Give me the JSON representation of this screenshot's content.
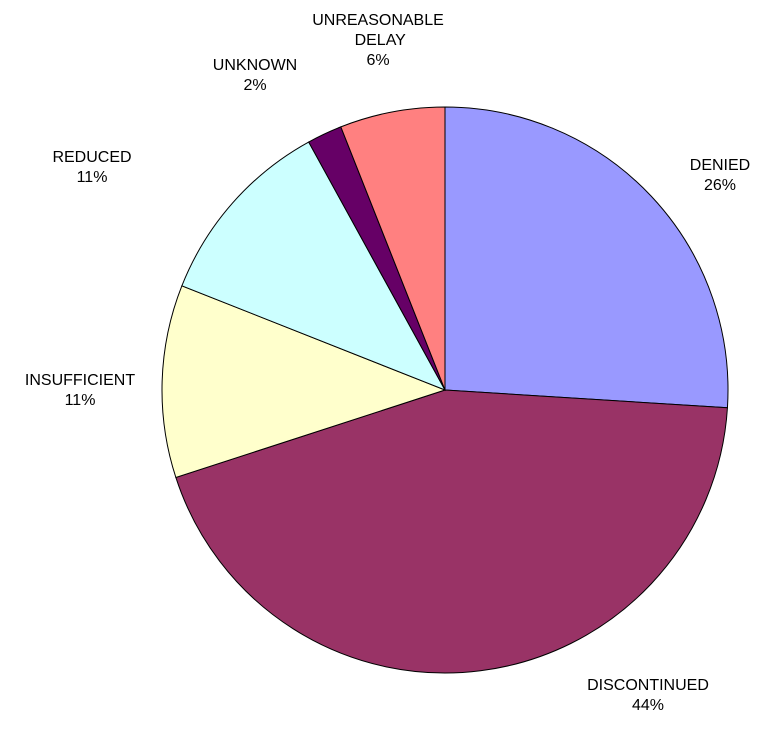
{
  "chart_data": {
    "type": "pie",
    "categories": [
      "DENIED",
      "DISCONTINUED",
      "INSUFFICIENT",
      "REDUCED",
      "UNKNOWN",
      "UNREASONABLE DELAY"
    ],
    "values": [
      26,
      44,
      11,
      11,
      2,
      6
    ],
    "value_labels": [
      "26%",
      "44%",
      "11%",
      "11%",
      "2%",
      "6%"
    ],
    "colors": [
      "#9999ff",
      "#993366",
      "#ffffcc",
      "#ccffff",
      "#660066",
      "#ff8080"
    ]
  }
}
